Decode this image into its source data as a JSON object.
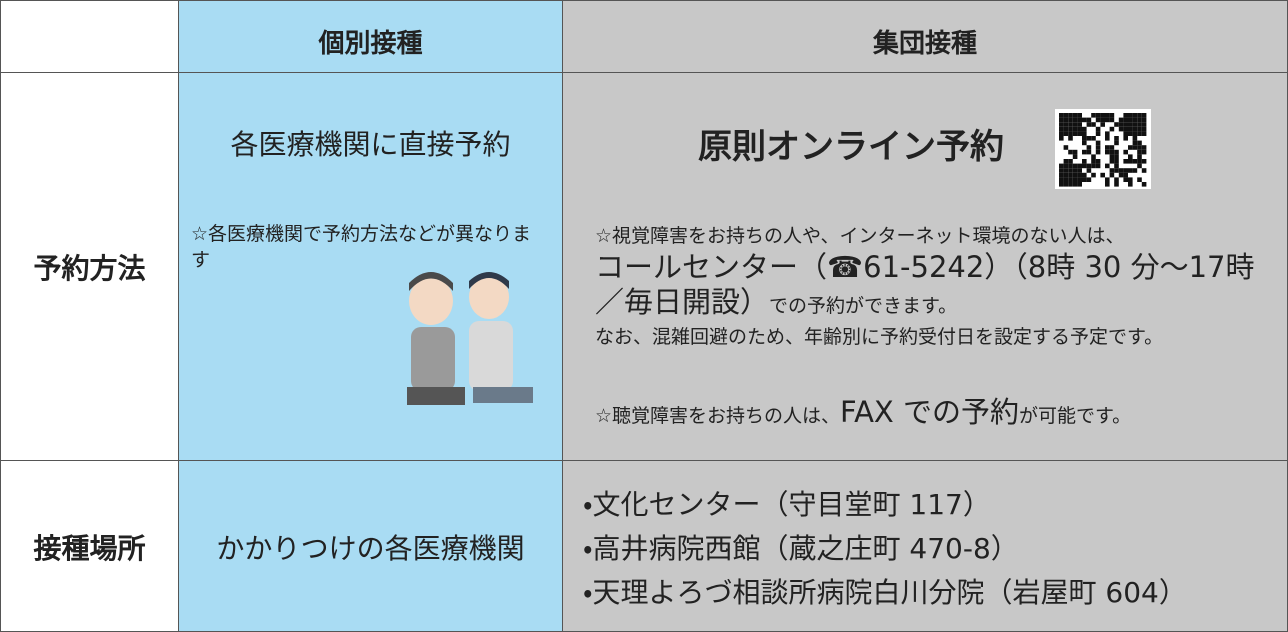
{
  "table": {
    "header": [
      "個別接種",
      "集団接種"
    ],
    "rows": [
      {
        "label": "予約方法",
        "individual": [
          "各医療機関に直接予約",
          "☆各医療機関で予約方法などが異なります"
        ],
        "group": {
          "title": "原則オンライン予約",
          "note1": [
            "☆視覚障害をお持ちの人や、インターネット環境のない人は、",
            "コールセンター（☎61-5242）（8時 30 分～17時／毎日開設）",
            "での予約ができます。",
            "なお、混雑回避のため、年齢別に予約受付日を設定する予定です。"
          ],
          "note2": [
            "☆聴覚障害をお持ちの人は、",
            "FAX での予約",
            "が可能です。"
          ]
        }
      },
      {
        "label": "接種場所",
        "individual": [
          "かかりつけの各医療機関"
        ],
        "group": [
          "・文化センター（守目堂町 117）",
          "・高井病院西館（蔵之庄町 470-8）",
          "・天理よろづ相談所病院白川分院（岩屋町 604）"
        ]
      }
    ]
  }
}
